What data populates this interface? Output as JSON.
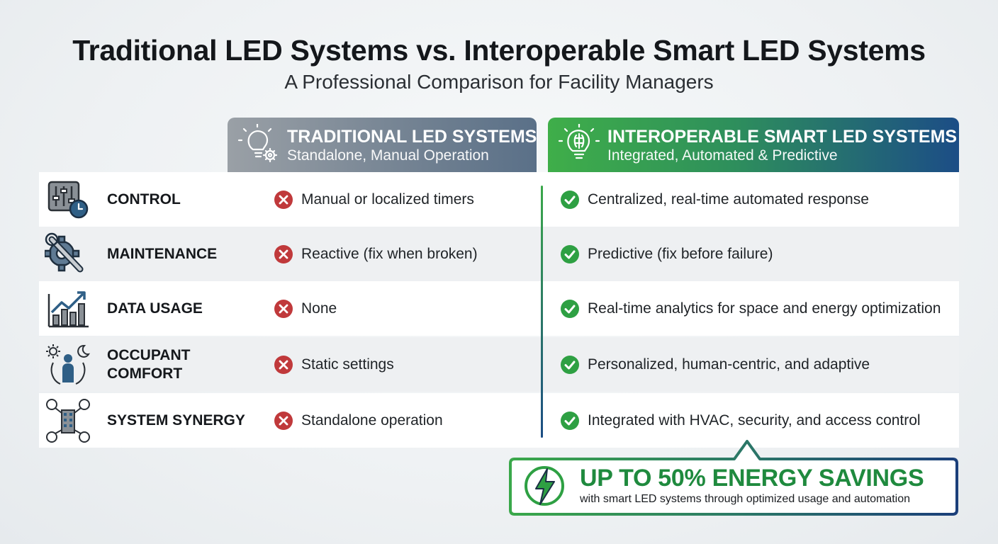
{
  "title": "Traditional LED Systems vs. Interoperable Smart LED Systems",
  "subtitle": "A Professional Comparison for Facility Managers",
  "columns": {
    "traditional": {
      "title": "TRADITIONAL LED SYSTEMS",
      "subtitle": "Standalone, Manual Operation",
      "icon": "lightbulb-gear-icon"
    },
    "smart": {
      "title": "INTEROPERABLE SMART LED SYSTEMS",
      "subtitle": "Integrated, Automated & Predictive",
      "icon": "smart-bulb-icon"
    }
  },
  "rows": [
    {
      "label": "CONTROL",
      "icon": "control-sliders-clock-icon",
      "traditional": "Manual or localized timers",
      "smart": "Centralized, real-time automated response"
    },
    {
      "label": "MAINTENANCE",
      "icon": "wrench-gear-icon",
      "traditional": "Reactive (fix when broken)",
      "smart": "Predictive (fix before failure)"
    },
    {
      "label": "DATA USAGE",
      "icon": "bar-chart-trend-icon",
      "traditional": "None",
      "smart": "Real-time analytics for space and energy optimization"
    },
    {
      "label": "OCCUPANT COMFORT",
      "label_line1": "OCCUPANT",
      "label_line2": "COMFORT",
      "icon": "person-sun-moon-icon",
      "traditional": "Static settings",
      "smart": "Personalized, human-centric, and adaptive"
    },
    {
      "label": "SYSTEM SYNERGY",
      "icon": "building-network-icon",
      "traditional": "Standalone operation",
      "smart": "Integrated with HVAC, security, and access control"
    }
  ],
  "callout": {
    "headline": "UP TO 50% ENERGY SAVINGS",
    "detail": "with smart LED systems through optimized usage and automation",
    "icon": "lightning-bolt-icon"
  },
  "colors": {
    "cross": "#c0393b",
    "check": "#2ea043",
    "accent_green": "#1f8a3e",
    "accent_navy": "#1c3f7a"
  }
}
